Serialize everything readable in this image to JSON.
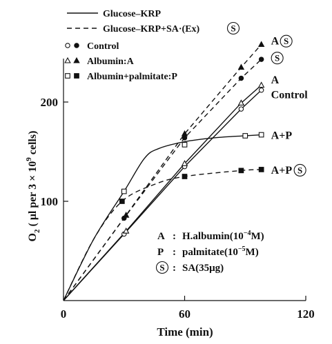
{
  "chart_data": {
    "type": "line",
    "xlabel": "Time (min)",
    "ylabel_parts": [
      "O",
      "2",
      " ( μl per 3 × 10",
      "9",
      " cells)"
    ],
    "xlim": [
      0,
      120
    ],
    "ylim": [
      0,
      250
    ],
    "xticks": [
      0,
      60,
      120
    ],
    "yticks": [
      100,
      200
    ],
    "grid": false,
    "legend": {
      "position": "top-left",
      "line_styles": [
        {
          "label": "Glucose–KRP",
          "dash": "solid"
        },
        {
          "label": "Glucose–KRP+SA·(Ex)",
          "dash": "dashed",
          "circled_suffix": "S"
        }
      ],
      "markers": [
        {
          "symbols": [
            "○",
            "●"
          ],
          "label": "Control"
        },
        {
          "symbols": [
            "△",
            "▲"
          ],
          "label": "Albumin:A"
        },
        {
          "symbols": [
            "□",
            "■"
          ],
          "label": "Albumin+palmitate:P"
        }
      ]
    },
    "series": [
      {
        "label": "Control",
        "dash": "solid",
        "marker": "circle",
        "filled": false,
        "smooth": false,
        "points": [
          [
            30,
            67
          ],
          [
            60,
            135
          ],
          [
            88,
            193
          ],
          [
            98,
            212
          ]
        ],
        "line": [
          [
            0,
            0
          ],
          [
            30,
            67
          ],
          [
            60,
            135
          ],
          [
            88,
            193
          ],
          [
            98,
            212
          ]
        ]
      },
      {
        "label": "A",
        "dash": "solid",
        "marker": "triangle",
        "filled": false,
        "smooth": false,
        "points": [
          [
            31,
            70
          ],
          [
            60,
            138
          ],
          [
            88,
            199
          ],
          [
            98,
            217
          ]
        ],
        "line": [
          [
            0,
            0
          ],
          [
            31,
            70
          ],
          [
            60,
            138
          ],
          [
            88,
            199
          ],
          [
            98,
            217
          ]
        ]
      },
      {
        "label": "A+P",
        "dash": "solid",
        "marker": "square",
        "filled": false,
        "smooth": true,
        "points": [
          [
            30,
            110
          ],
          [
            60,
            157
          ],
          [
            90,
            166
          ],
          [
            98,
            167
          ]
        ],
        "line": [
          [
            0,
            0
          ],
          [
            15,
            62
          ],
          [
            30,
            110
          ],
          [
            40,
            143
          ],
          [
            47,
            153
          ],
          [
            60,
            160
          ],
          [
            75,
            164
          ],
          [
            90,
            166
          ],
          [
            98,
            167
          ]
        ]
      },
      {
        "label": "Ⓢ (Control)",
        "dash": "dashed",
        "marker": "circle",
        "filled": true,
        "smooth": false,
        "points": [
          [
            30,
            83
          ],
          [
            60,
            164
          ],
          [
            88,
            224
          ],
          [
            98,
            243
          ]
        ],
        "line": [
          [
            0,
            0
          ],
          [
            30,
            83
          ],
          [
            60,
            164
          ],
          [
            88,
            224
          ],
          [
            98,
            243
          ]
        ]
      },
      {
        "label": "A Ⓢ",
        "dash": "dashed",
        "marker": "triangle",
        "filled": true,
        "smooth": false,
        "points": [
          [
            31,
            86
          ],
          [
            60,
            168
          ],
          [
            88,
            235
          ],
          [
            98,
            258
          ]
        ],
        "line": [
          [
            0,
            0
          ],
          [
            31,
            86
          ],
          [
            60,
            168
          ],
          [
            88,
            235
          ],
          [
            98,
            258
          ]
        ]
      },
      {
        "label": "A+P Ⓢ",
        "dash": "dashed",
        "marker": "square",
        "filled": true,
        "smooth": true,
        "points": [
          [
            29,
            100
          ],
          [
            60,
            125
          ],
          [
            88,
            131
          ],
          [
            98,
            132
          ]
        ],
        "line": [
          [
            0,
            0
          ],
          [
            15,
            62
          ],
          [
            29,
            100
          ],
          [
            45,
            117
          ],
          [
            60,
            125
          ],
          [
            88,
            131
          ],
          [
            98,
            132
          ]
        ]
      }
    ],
    "end_labels": [
      {
        "text": "A",
        "circled": "S",
        "x": 98,
        "y": 262
      },
      {
        "text": "",
        "circled": "S",
        "x": 98,
        "y": 245
      },
      {
        "text": "A",
        "circled": "",
        "x": 98,
        "y": 223
      },
      {
        "text": "Control",
        "circled": "",
        "x": 98,
        "y": 208
      },
      {
        "text": "A+P",
        "circled": "",
        "x": 98,
        "y": 167
      },
      {
        "text": "A+P",
        "circled": "S",
        "x": 98,
        "y": 132
      }
    ],
    "annotations": [
      {
        "key": "A",
        "sep": ":",
        "text": "H.albumin(10",
        "sup": "−4",
        "tail": "M)"
      },
      {
        "key": "P",
        "sep": ":",
        "text": "palmitate(10",
        "sup": "−5",
        "tail": "M)"
      },
      {
        "key": "Ⓢ",
        "sep": ":",
        "text": "SA(35μg)",
        "sup": "",
        "tail": ""
      }
    ]
  }
}
